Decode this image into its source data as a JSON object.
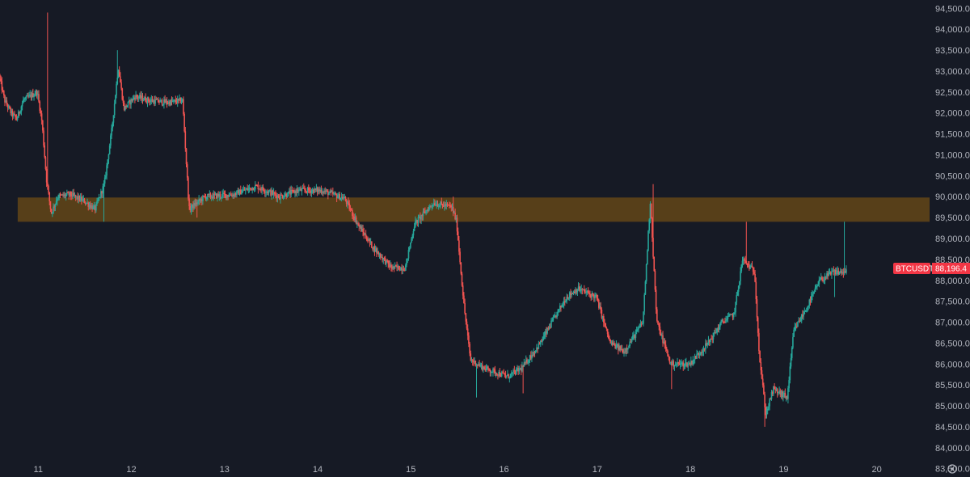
{
  "chart_data": {
    "type": "candlestick",
    "symbol": "BTCUSDT",
    "last_price": 88196.4,
    "last_price_label": "88,196.4",
    "ylim": [
      83300,
      94700
    ],
    "y_ticks": [
      {
        "value": 94500,
        "label": "94,500.0"
      },
      {
        "value": 94000,
        "label": "94,000.0"
      },
      {
        "value": 93500,
        "label": "93,500.0"
      },
      {
        "value": 93000,
        "label": "93,000.0"
      },
      {
        "value": 92500,
        "label": "92,500.0"
      },
      {
        "value": 92000,
        "label": "92,000.0"
      },
      {
        "value": 91500,
        "label": "91,500.0"
      },
      {
        "value": 91000,
        "label": "91,000.0"
      },
      {
        "value": 90500,
        "label": "90,500.0"
      },
      {
        "value": 90000,
        "label": "90,000.0"
      },
      {
        "value": 89500,
        "label": "89,500.0"
      },
      {
        "value": 89000,
        "label": "89,000.0"
      },
      {
        "value": 88500,
        "label": "88,500.0"
      },
      {
        "value": 88000,
        "label": "88,000.0"
      },
      {
        "value": 87500,
        "label": "87,500.0"
      },
      {
        "value": 87000,
        "label": "87,000.0"
      },
      {
        "value": 86500,
        "label": "86,500.0"
      },
      {
        "value": 86000,
        "label": "86,000.0"
      },
      {
        "value": 85500,
        "label": "85,500.0"
      },
      {
        "value": 85000,
        "label": "85,000.0"
      },
      {
        "value": 84500,
        "label": "84,500.0"
      },
      {
        "value": 84000,
        "label": "84,000.0"
      },
      {
        "value": 83500,
        "label": "83,500.0"
      }
    ],
    "x_start": 10.59,
    "x_end": 20.55,
    "x_ticks": [
      {
        "value": 11,
        "label": "11"
      },
      {
        "value": 12,
        "label": "12"
      },
      {
        "value": 13,
        "label": "13"
      },
      {
        "value": 14,
        "label": "14"
      },
      {
        "value": 15,
        "label": "15"
      },
      {
        "value": 16,
        "label": "16"
      },
      {
        "value": 17,
        "label": "17"
      },
      {
        "value": 18,
        "label": "18"
      },
      {
        "value": 19,
        "label": "19"
      },
      {
        "value": 20,
        "label": "20"
      }
    ],
    "zone": {
      "low": 89400,
      "high": 89980,
      "from_day": 10.78,
      "color": "#5e4418"
    },
    "path_points": [
      [
        10.59,
        92900
      ],
      [
        10.65,
        92300
      ],
      [
        10.72,
        92000
      ],
      [
        10.78,
        91850
      ],
      [
        10.85,
        92300
      ],
      [
        11.0,
        92500
      ],
      [
        11.05,
        91800
      ],
      [
        11.1,
        90400
      ],
      [
        11.15,
        89600
      ],
      [
        11.22,
        90000
      ],
      [
        11.35,
        90050
      ],
      [
        11.5,
        89900
      ],
      [
        11.62,
        89700
      ],
      [
        11.72,
        90300
      ],
      [
        11.8,
        91600
      ],
      [
        11.87,
        93100
      ],
      [
        11.93,
        92100
      ],
      [
        12.05,
        92400
      ],
      [
        12.2,
        92300
      ],
      [
        12.4,
        92250
      ],
      [
        12.56,
        92300
      ],
      [
        12.63,
        89700
      ],
      [
        12.8,
        90000
      ],
      [
        13.1,
        90050
      ],
      [
        13.35,
        90250
      ],
      [
        13.6,
        90000
      ],
      [
        13.8,
        90150
      ],
      [
        14.05,
        90150
      ],
      [
        14.3,
        89950
      ],
      [
        14.45,
        89300
      ],
      [
        14.6,
        88800
      ],
      [
        14.8,
        88300
      ],
      [
        14.95,
        88300
      ],
      [
        15.05,
        89350
      ],
      [
        15.25,
        89850
      ],
      [
        15.45,
        89750
      ],
      [
        15.5,
        89400
      ],
      [
        15.58,
        87400
      ],
      [
        15.65,
        86100
      ],
      [
        15.8,
        85900
      ],
      [
        16.05,
        85700
      ],
      [
        16.2,
        85900
      ],
      [
        16.4,
        86500
      ],
      [
        16.55,
        87100
      ],
      [
        16.68,
        87600
      ],
      [
        16.8,
        87800
      ],
      [
        17.0,
        87600
      ],
      [
        17.15,
        86500
      ],
      [
        17.3,
        86300
      ],
      [
        17.5,
        87000
      ],
      [
        17.58,
        89900
      ],
      [
        17.65,
        87000
      ],
      [
        17.8,
        86000
      ],
      [
        18.0,
        86000
      ],
      [
        18.2,
        86500
      ],
      [
        18.35,
        87000
      ],
      [
        18.48,
        87200
      ],
      [
        18.57,
        88500
      ],
      [
        18.7,
        88200
      ],
      [
        18.75,
        86200
      ],
      [
        18.82,
        84800
      ],
      [
        18.9,
        85400
      ],
      [
        19.05,
        85200
      ],
      [
        19.12,
        86800
      ],
      [
        19.25,
        87300
      ],
      [
        19.4,
        88000
      ],
      [
        19.55,
        88200
      ],
      [
        19.68,
        88196
      ]
    ],
    "spikes": [
      [
        11.1,
        94400
      ],
      [
        11.7,
        89400
      ],
      [
        11.85,
        93500
      ],
      [
        12.7,
        89500
      ],
      [
        15.45,
        90000
      ],
      [
        15.7,
        85200
      ],
      [
        16.2,
        85300
      ],
      [
        17.6,
        90300
      ],
      [
        17.8,
        85400
      ],
      [
        18.6,
        89400
      ],
      [
        18.8,
        84500
      ],
      [
        19.65,
        89400
      ],
      [
        19.73,
        88800
      ],
      [
        19.55,
        87600
      ]
    ],
    "colors": {
      "up": "#26a69a",
      "down": "#ef5350",
      "label_bg": "#f23645"
    }
  }
}
